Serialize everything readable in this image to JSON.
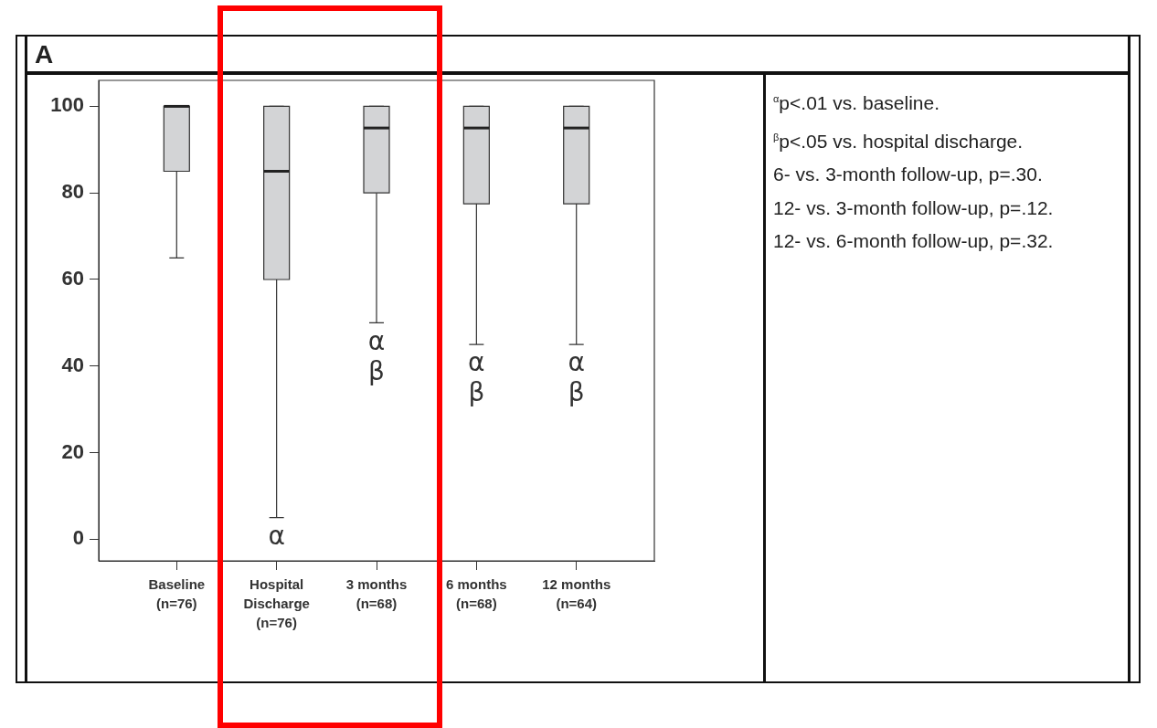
{
  "chart_data": {
    "type": "box",
    "categories": [
      "Baseline\n(n=76)",
      "Hospital\nDischarge\n(n=76)",
      "3 months\n(n=68)",
      "6 months\n(n=68)",
      "12 months\n(n=64)"
    ],
    "boxes": [
      {
        "low": 65,
        "q1": 85,
        "median": 100,
        "q3": 100,
        "high": 100
      },
      {
        "low": 5,
        "q1": 60,
        "median": 85,
        "q3": 100,
        "high": 100
      },
      {
        "low": 50,
        "q1": 80,
        "median": 95,
        "q3": 100,
        "high": 100
      },
      {
        "low": 45,
        "q1": 77.5,
        "median": 95,
        "q3": 100,
        "high": 100
      },
      {
        "low": 45,
        "q1": 77.5,
        "median": 95,
        "q3": 100,
        "high": 100
      }
    ],
    "color": "#d3d4d6",
    "ylim": [
      -5,
      106
    ],
    "yticks": [
      0,
      20,
      40,
      60,
      80,
      100
    ],
    "grid": false,
    "legend": false,
    "annotations": [
      "A",
      "α",
      "α\nβ",
      "α\nβ",
      "α\nβ",
      "$^{α}$p<.01 vs. baseline.",
      "$^{β}$p<.05 vs. hospital discharge.",
      "6- vs. 3-month follow-up, p=.30.",
      "12- vs. 3-month follow-up, p=.12.",
      "12- vs. 6-month follow-up, p=.32."
    ]
  }
}
